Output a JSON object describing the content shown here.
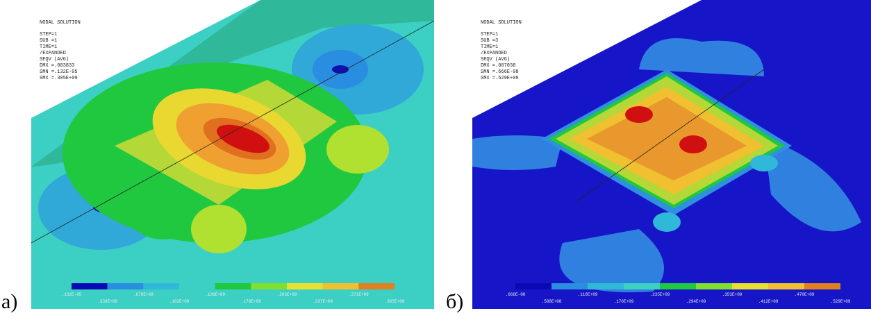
{
  "panels": [
    {
      "label": "а)",
      "header": [
        "NODAL SOLUTION",
        "STEP=1",
        "SUB =1",
        "TIME=1",
        "/EXPANDED",
        "SEQV     (AVG)",
        "DMX =.003833",
        "SMN =.132E-05",
        "SMX =.305E+09"
      ],
      "legend_labels": [
        ".132E-05",
        ".339E+08",
        ".678E+08",
        ".102E+09",
        ".136E+09",
        ".170E+09",
        ".203E+09",
        ".237E+09",
        ".271E+09",
        ".305E+09"
      ]
    },
    {
      "label": "б)",
      "header": [
        "NODAL SOLUTION",
        "STEP=1",
        "SUB =3",
        "TIME=1",
        "/EXPANDED",
        "SEQV     (AVG)",
        "DMX =.007038",
        "SMN =.666E-08",
        "SMX =.529E+09"
      ],
      "legend_labels": [
        ".666E-08",
        ".588E+08",
        ".118E+09",
        ".176E+09",
        ".235E+09",
        ".294E+09",
        ".353E+09",
        ".412E+09",
        ".470E+09",
        ".529E+09"
      ]
    }
  ]
}
